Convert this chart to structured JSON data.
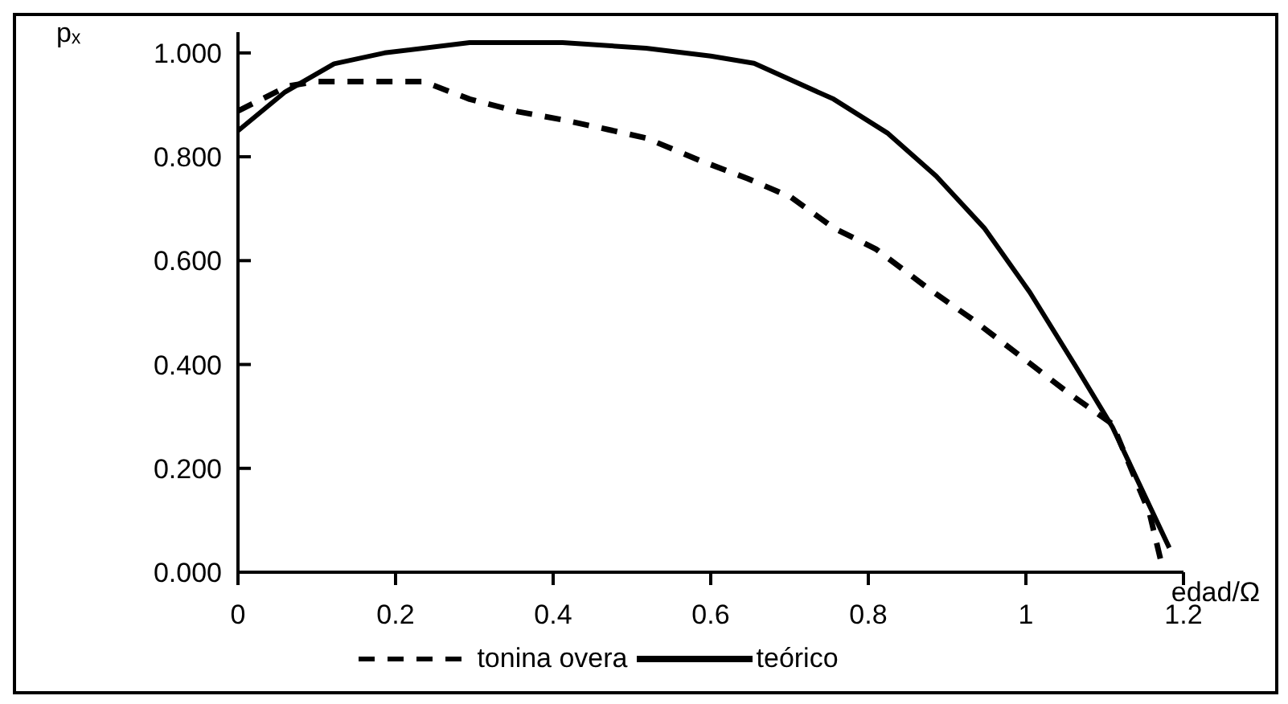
{
  "chart_data": {
    "type": "line",
    "xlabel": "edad/Ω",
    "ylabel": "pₓ",
    "xlim": [
      0,
      1.2
    ],
    "ylim": [
      0,
      1.04
    ],
    "xticks": [
      0,
      0.2,
      0.4,
      0.6,
      0.8,
      1,
      1.2
    ],
    "yticks": [
      {
        "value": 0,
        "label": "0.000"
      },
      {
        "value": 0.2,
        "label": "0.200"
      },
      {
        "value": 0.4,
        "label": "0.400"
      },
      {
        "value": 0.6,
        "label": "0.600"
      },
      {
        "value": 0.8,
        "label": "0.800"
      },
      {
        "value": 1,
        "label": "1.000"
      }
    ],
    "grid": false,
    "legend": "bottom",
    "marker": "none",
    "series": [
      {
        "name": "tonina overa",
        "color": "#000000",
        "line_style": "dashed",
        "x": [
          0,
          0.063,
          0.1,
          0.235,
          0.294,
          0.355,
          0.416,
          0.471,
          0.518,
          0.586,
          0.647,
          0.702,
          0.756,
          0.81,
          0.872,
          0.933,
          0.994,
          1.055,
          1.11,
          1.157,
          1.171
        ],
        "values": [
          0.888,
          0.936,
          0.945,
          0.945,
          0.911,
          0.887,
          0.87,
          0.852,
          0.836,
          0.793,
          0.758,
          0.722,
          0.663,
          0.622,
          0.551,
          0.486,
          0.415,
          0.344,
          0.285,
          0.113,
          0.024
        ]
      },
      {
        "name": "teórico",
        "color": "#000000",
        "line_style": "solid",
        "x": [
          0,
          0.06,
          0.122,
          0.186,
          0.294,
          0.412,
          0.518,
          0.6,
          0.655,
          0.756,
          0.824,
          0.886,
          0.947,
          1.005,
          1.063,
          1.11,
          1.182
        ],
        "values": [
          0.85,
          0.925,
          0.979,
          1.0,
          1.02,
          1.02,
          1.009,
          0.994,
          0.98,
          0.911,
          0.846,
          0.763,
          0.663,
          0.539,
          0.397,
          0.279,
          0.047
        ]
      }
    ]
  }
}
